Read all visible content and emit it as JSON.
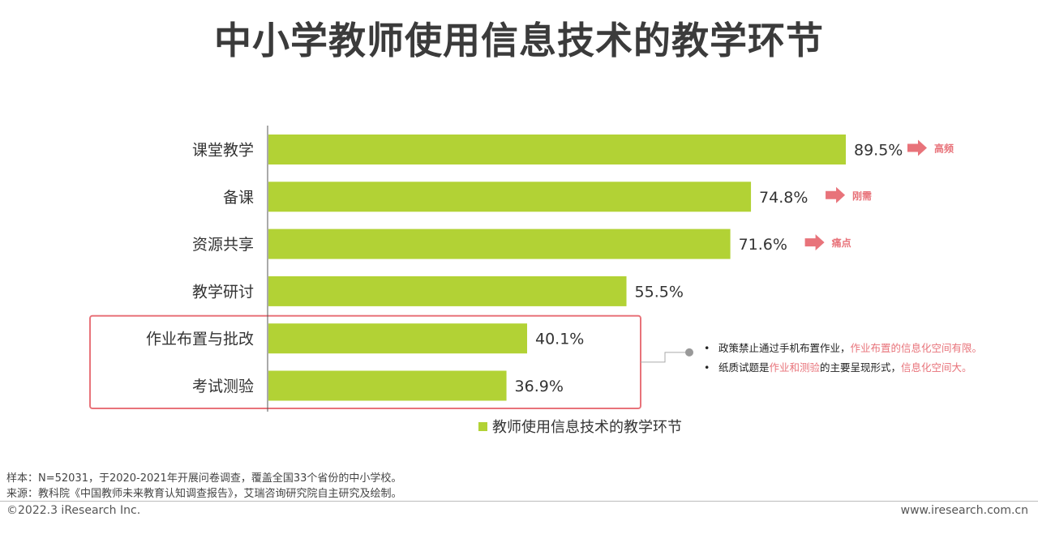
{
  "title": "中小学教师使用信息技术的教学环节",
  "chart_data": {
    "type": "bar",
    "orientation": "horizontal",
    "categories": [
      "课堂教学",
      "备课",
      "资源共享",
      "教学研讨",
      "作业布置与批改",
      "考试测验"
    ],
    "series": [
      {
        "name": "教师使用信息技术的教学环节",
        "values": [
          89.5,
          74.8,
          71.6,
          55.5,
          40.1,
          36.9
        ],
        "labels": [
          "89.5%",
          "74.8%",
          "71.6%",
          "55.5%",
          "40.1%",
          "36.9%"
        ],
        "color": "#b2d235"
      }
    ],
    "unit": "%",
    "xlim": [
      0,
      100
    ],
    "grid": false,
    "legend_position": "bottom",
    "tags": [
      {
        "category": "课堂教学",
        "text": "高频"
      },
      {
        "category": "备课",
        "text": "刚需"
      },
      {
        "category": "资源共享",
        "text": "痛点"
      }
    ],
    "highlight_categories": [
      "作业布置与批改",
      "考试测验"
    ],
    "highlight_color": "#e8737a"
  },
  "notes": [
    {
      "bullet": "•",
      "text": "政策禁止通过手机布置作业，",
      "highlight": "作业布置的信息化空间有限。",
      "after": ""
    },
    {
      "bullet": "•",
      "text": "纸质试题是",
      "highlight": "作业和测验",
      "after": "的主要呈现形式，",
      "highlight2": "信息化空间大。"
    }
  ],
  "footer": {
    "sample": "样本：N=52031，于2020-2021年开展问卷调查，覆盖全国33个省份的中小学校。",
    "source": "来源：教科院《中国教师未来教育认知调查报告》，艾瑞咨询研究院自主研究及绘制。",
    "copyright": "©2022.3 iResearch Inc.",
    "website": "www.iresearch.com.cn"
  }
}
